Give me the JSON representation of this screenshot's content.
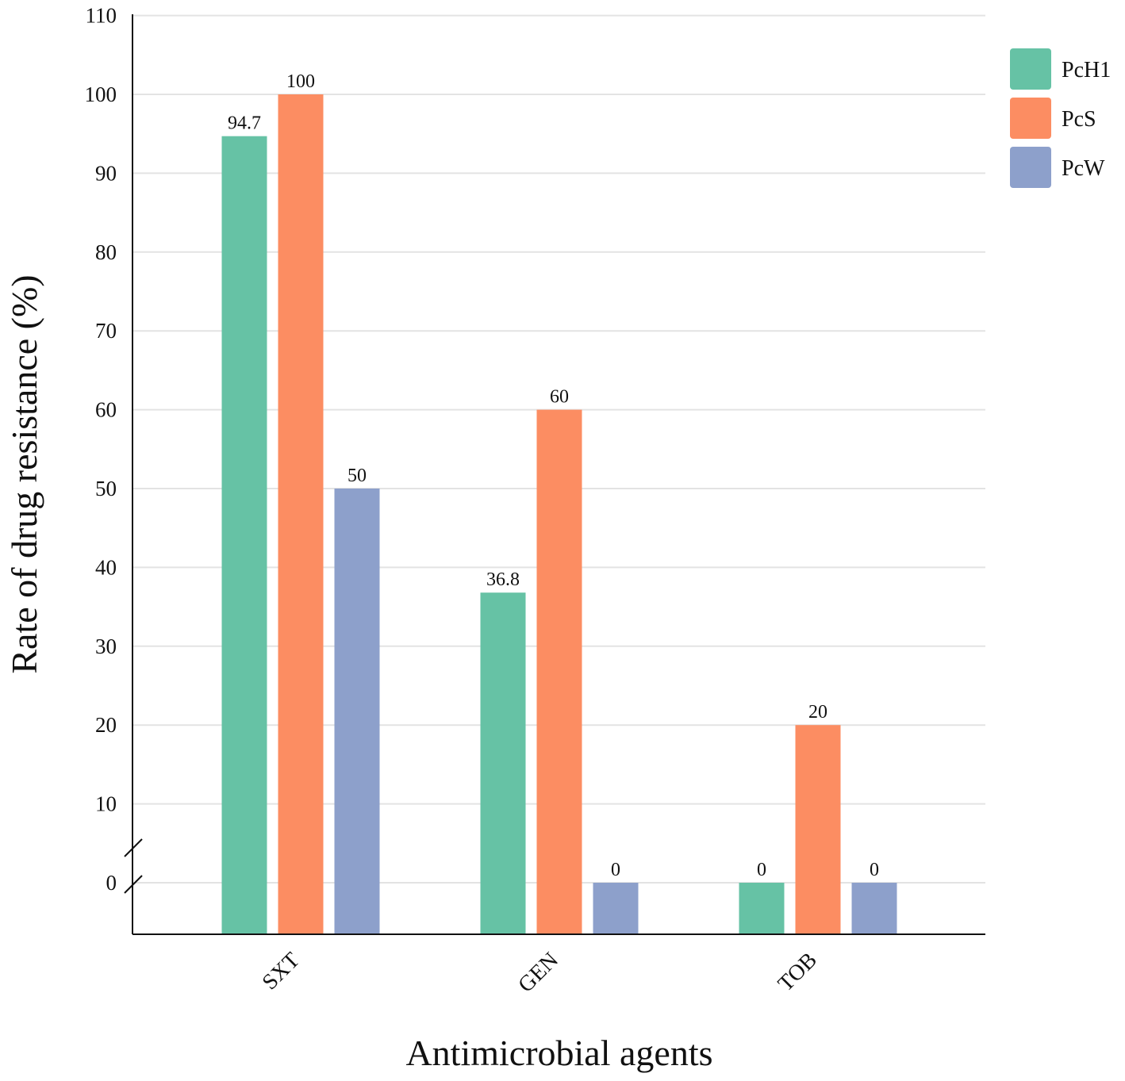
{
  "chart_data": {
    "type": "bar",
    "title": "",
    "xlabel": "Antimicrobial agents",
    "ylabel": "Rate of drug resistance (%)",
    "categories": [
      "SXT",
      "GEN",
      "TOB"
    ],
    "series": [
      {
        "name": "PcH1",
        "color": "#66c2a5",
        "values": [
          94.7,
          36.8,
          0
        ],
        "labels": [
          "94.7",
          "36.8",
          "0"
        ]
      },
      {
        "name": "PcS",
        "color": "#fc8d62",
        "values": [
          100,
          60,
          20
        ],
        "labels": [
          "100",
          "60",
          "20"
        ]
      },
      {
        "name": "PcW",
        "color": "#8da0cb",
        "values": [
          50,
          0,
          0
        ],
        "labels": [
          "50",
          "0",
          "0"
        ]
      }
    ],
    "y_ticks": [
      0,
      10,
      20,
      30,
      40,
      50,
      60,
      70,
      80,
      90,
      100,
      110
    ],
    "y_tick_labels": [
      "0",
      "10",
      "20",
      "30",
      "40",
      "50",
      "60",
      "70",
      "80",
      "90",
      "100",
      "110"
    ],
    "ylim": [
      -6.5,
      110
    ],
    "axis_break": "between 0 and 10",
    "grid": true,
    "legend_position": "top-right"
  }
}
